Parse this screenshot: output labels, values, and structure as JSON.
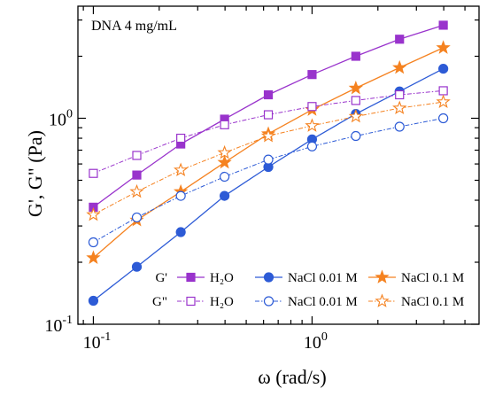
{
  "chart_data": {
    "type": "line",
    "annotation": "DNA 4 mg/mL",
    "xlabel": "ω (rad/s)",
    "ylabel": "G', G\" (Pa)",
    "x_scale": "log",
    "y_scale": "log",
    "xlim": [
      0.085,
      5.8
    ],
    "ylim": [
      0.1,
      3.5
    ],
    "x_ticks": [
      {
        "value": 0.1,
        "base": "10",
        "exp": "-1"
      },
      {
        "value": 1,
        "base": "10",
        "exp": "0"
      }
    ],
    "y_ticks": [
      {
        "value": 0.1,
        "base": "10",
        "exp": "-1"
      },
      {
        "value": 1,
        "base": "10",
        "exp": "0"
      }
    ],
    "x": [
      0.1,
      0.158,
      0.251,
      0.398,
      0.631,
      1.0,
      1.585,
      2.512,
      3.981
    ],
    "series": [
      {
        "group": "G'",
        "name": "H₂O",
        "color": "#9933cc",
        "marker": "square",
        "filled": true,
        "dash": "solid",
        "values": [
          0.37,
          0.53,
          0.75,
          0.99,
          1.3,
          1.63,
          2.0,
          2.42,
          2.83
        ]
      },
      {
        "group": "G'",
        "name": "NaCl 0.01 M",
        "color": "#2d5bd6",
        "marker": "circle",
        "filled": true,
        "dash": "solid",
        "values": [
          0.13,
          0.19,
          0.28,
          0.42,
          0.58,
          0.79,
          1.05,
          1.35,
          1.74
        ]
      },
      {
        "group": "G'",
        "name": "NaCl 0.1 M",
        "color": "#f58220",
        "marker": "star",
        "filled": true,
        "dash": "solid",
        "values": [
          0.21,
          0.32,
          0.44,
          0.61,
          0.84,
          1.1,
          1.4,
          1.76,
          2.2
        ]
      },
      {
        "group": "G\"",
        "name": "H₂O",
        "color": "#9933cc",
        "marker": "square",
        "filled": false,
        "dash": "dashdot",
        "values": [
          0.54,
          0.66,
          0.8,
          0.93,
          1.04,
          1.14,
          1.22,
          1.3,
          1.36
        ]
      },
      {
        "group": "G\"",
        "name": "NaCl 0.01 M",
        "color": "#2d5bd6",
        "marker": "circle",
        "filled": false,
        "dash": "dashdot",
        "values": [
          0.25,
          0.33,
          0.42,
          0.52,
          0.63,
          0.73,
          0.82,
          0.91,
          1.0
        ]
      },
      {
        "group": "G\"",
        "name": "NaCl 0.1 M",
        "color": "#f58220",
        "marker": "star",
        "filled": false,
        "dash": "dashdot",
        "values": [
          0.34,
          0.44,
          0.56,
          0.68,
          0.82,
          0.92,
          1.02,
          1.12,
          1.2
        ]
      }
    ],
    "legend": {
      "rows": [
        {
          "prefix": "G'",
          "entries": [
            "H₂O",
            "NaCl 0.01 M",
            "NaCl 0.1 M"
          ]
        },
        {
          "prefix": "G\"",
          "entries": [
            "H₂O",
            "NaCl 0.01 M",
            "NaCl 0.1 M"
          ]
        }
      ],
      "placement": "bottom-right"
    },
    "grid": false
  }
}
